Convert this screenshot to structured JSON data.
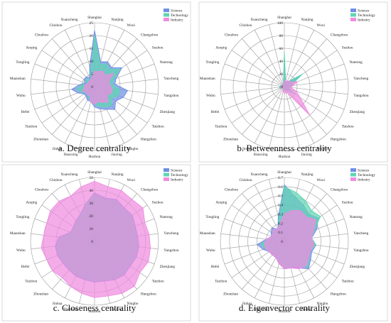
{
  "chart_data": [
    {
      "type": "radar",
      "caption": "a. Degree centrality",
      "rmax": 25,
      "ticks": [
        0,
        5,
        10,
        15,
        20,
        25
      ],
      "categories": [
        "Shanghai",
        "Nanjing",
        "Wuxi",
        "Changzhou",
        "Suzhou",
        "Nantong",
        "Yancheng",
        "Yangzhou",
        "Zhenjiang",
        "Taizhou",
        "Hangzhou",
        "Ningbo",
        "Jiaxing",
        "Huzhou",
        "Shaoxing",
        "Jinhua",
        "Zhoushan",
        "Taizhou",
        "Hefei",
        "Wuhu",
        "Maanshan",
        "Tongling",
        "Anqing",
        "Chuzhou",
        "Chizhou",
        "Xuancheng"
      ],
      "legend_position": "top-right",
      "series": [
        {
          "name": "Science",
          "color": "#6f8fe6",
          "values": [
            22,
            10,
            11,
            10,
            13,
            9,
            8,
            13,
            12,
            10,
            12,
            10,
            9,
            8,
            6,
            6,
            5,
            5,
            7,
            9,
            6,
            4,
            5,
            5,
            4,
            8
          ]
        },
        {
          "name": "Technology",
          "color": "#5fd6b2",
          "values": [
            20,
            9,
            10,
            9,
            12,
            8,
            7,
            10,
            10,
            8,
            10,
            9,
            8,
            7,
            5,
            5,
            4,
            4,
            6,
            7,
            5,
            3,
            4,
            4,
            3,
            6
          ]
        },
        {
          "name": "Industry",
          "color": "#f08ce0",
          "values": [
            6,
            6,
            7,
            6,
            9,
            6,
            6,
            7,
            7,
            6,
            8,
            7,
            6,
            7,
            6,
            4,
            4,
            4,
            5,
            4,
            4,
            3,
            3,
            3,
            3,
            4
          ]
        }
      ]
    },
    {
      "type": "radar",
      "caption": "b. Betweenness centrality",
      "rmax": 100,
      "ticks": [
        0,
        20,
        40,
        60,
        80,
        100
      ],
      "categories": [
        "Shanghai",
        "Nanjing",
        "Wuxi",
        "Changzhou",
        "Suzhou",
        "Nantong",
        "Yancheng",
        "Yangzhou",
        "Zhenjiang",
        "Taizhou",
        "Hangzhou",
        "Ningbo",
        "Jiaxing",
        "Huzhou",
        "Shaoxing",
        "Jinhua",
        "Zhoushan",
        "Taizhou",
        "Hefei",
        "Wuhu",
        "Maanshan",
        "Tongling",
        "Anqing",
        "Chuzhou",
        "Chizhou",
        "Xuancheng"
      ],
      "legend_position": "top-right",
      "series": [
        {
          "name": "Science",
          "color": "#6f8fe6",
          "values": [
            45,
            8,
            10,
            12,
            30,
            12,
            14,
            8,
            8,
            10,
            8,
            8,
            5,
            6,
            5,
            4,
            3,
            4,
            8,
            8,
            6,
            4,
            4,
            4,
            3,
            6
          ]
        },
        {
          "name": "Technology",
          "color": "#5fd6b2",
          "values": [
            55,
            8,
            9,
            12,
            35,
            14,
            12,
            8,
            8,
            22,
            10,
            8,
            5,
            6,
            5,
            4,
            3,
            4,
            8,
            8,
            6,
            4,
            4,
            4,
            3,
            6
          ]
        },
        {
          "name": "Industry",
          "color": "#f08ce0",
          "values": [
            10,
            8,
            10,
            12,
            12,
            22,
            14,
            10,
            20,
            30,
            60,
            12,
            10,
            10,
            8,
            4,
            3,
            4,
            6,
            5,
            4,
            3,
            3,
            3,
            3,
            4
          ]
        }
      ]
    },
    {
      "type": "radar",
      "caption": "c. Closeness centrality",
      "rmax": 50,
      "ticks": [
        0,
        10,
        20,
        30,
        40,
        50
      ],
      "categories": [
        "Shanghai",
        "Nanjing",
        "Wuxi",
        "Changzhou",
        "Suzhou",
        "Nantong",
        "Yancheng",
        "Yangzhou",
        "Zhenjiang",
        "Taizhou",
        "Hangzhou",
        "Ningbo",
        "Jiaxing",
        "Huzhou",
        "Shaoxing",
        "Jinhua",
        "Zhoushan",
        "Taizhou",
        "Hefei",
        "Wuhu",
        "Maanshan",
        "Tongling",
        "Anqing",
        "Chuzhou",
        "Chizhou",
        "Xuancheng"
      ],
      "legend_position": "top-right",
      "series": [
        {
          "name": "Science",
          "color": "#6f8fe6",
          "values": [
            38,
            35,
            37,
            35,
            36,
            34,
            34,
            35,
            35,
            34,
            35,
            34,
            32,
            32,
            31,
            31,
            30,
            30,
            31,
            31,
            28,
            20,
            20,
            22,
            24,
            30
          ]
        },
        {
          "name": "Technology",
          "color": "#5fd6b2",
          "values": [
            37,
            34,
            36,
            34,
            35,
            33,
            33,
            34,
            34,
            33,
            34,
            33,
            31,
            31,
            30,
            30,
            29,
            29,
            30,
            30,
            27,
            19,
            19,
            21,
            23,
            29
          ]
        },
        {
          "name": "Industry",
          "color": "#f08ce0",
          "values": [
            47,
            44,
            45,
            44,
            46,
            42,
            43,
            44,
            45,
            43,
            47,
            46,
            44,
            44,
            42,
            40,
            38,
            40,
            40,
            42,
            40,
            40,
            42,
            42,
            40,
            44
          ]
        }
      ]
    },
    {
      "type": "radar",
      "caption": "d. Eigenvector centrality",
      "rmax": 0.7,
      "ticks": [
        0,
        0.1,
        0.2,
        0.3,
        0.4,
        0.5,
        0.6,
        0.7
      ],
      "categories": [
        "Shanghai",
        "Nanjing",
        "Wuxi",
        "Changzhou",
        "Suzhou",
        "Nantong",
        "Yancheng",
        "Yangzhou",
        "Zhenjiang",
        "Taizhou",
        "Hangzhou",
        "Ningbo",
        "Jiaxing",
        "Huzhou",
        "Shaoxing",
        "Jinhua",
        "Zhoushan",
        "Taizhou",
        "Hefei",
        "Wuhu",
        "Maanshan",
        "Tongling",
        "Anqing",
        "Chuzhou",
        "Chizhou",
        "Xuancheng"
      ],
      "legend_position": "top-right",
      "series": [
        {
          "name": "Science",
          "color": "#6f8fe6",
          "values": [
            0.62,
            0.5,
            0.45,
            0.4,
            0.45,
            0.38,
            0.3,
            0.35,
            0.32,
            0.35,
            0.4,
            0.33,
            0.3,
            0.3,
            0.25,
            0.2,
            0.2,
            0.2,
            0.25,
            0.3,
            0.2,
            0.15,
            0.18,
            0.2,
            0.15,
            0.28
          ]
        },
        {
          "name": "Technology",
          "color": "#5fd6b2",
          "values": [
            0.6,
            0.55,
            0.5,
            0.45,
            0.48,
            0.35,
            0.3,
            0.35,
            0.3,
            0.33,
            0.38,
            0.3,
            0.28,
            0.28,
            0.22,
            0.18,
            0.18,
            0.18,
            0.22,
            0.26,
            0.18,
            0.12,
            0.15,
            0.18,
            0.12,
            0.25
          ]
        },
        {
          "name": "Industry",
          "color": "#f08ce0",
          "values": [
            0.3,
            0.35,
            0.38,
            0.36,
            0.42,
            0.34,
            0.3,
            0.33,
            0.3,
            0.32,
            0.36,
            0.34,
            0.3,
            0.3,
            0.25,
            0.2,
            0.2,
            0.2,
            0.22,
            0.22,
            0.2,
            0.15,
            0.15,
            0.18,
            0.15,
            0.2
          ]
        }
      ]
    }
  ]
}
